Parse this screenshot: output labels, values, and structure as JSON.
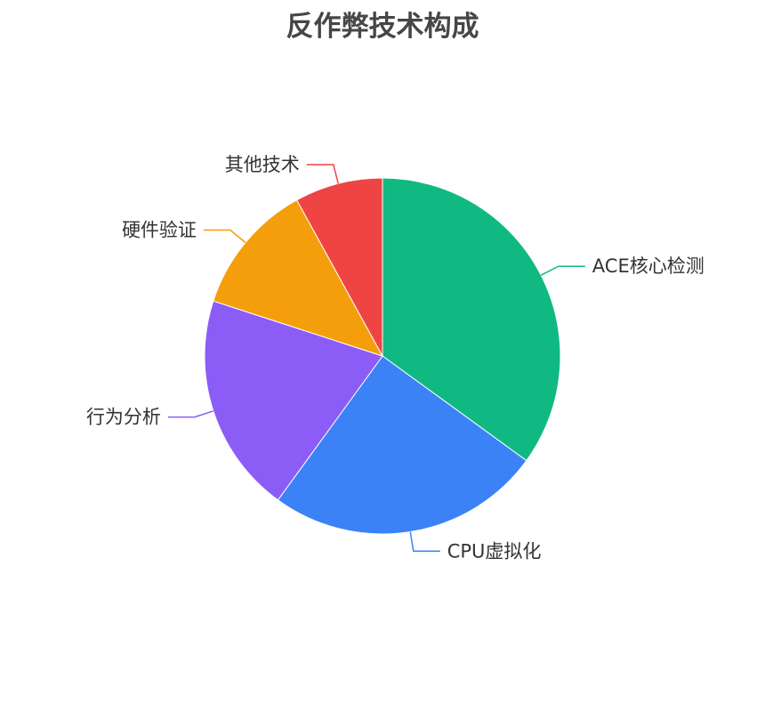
{
  "chart_data": {
    "type": "pie",
    "title": "反作弊技术构成",
    "categories": [
      "ACE核心检测",
      "CPU虚拟化",
      "行为分析",
      "硬件验证",
      "其他技术"
    ],
    "values": [
      35,
      25,
      20,
      12,
      8
    ],
    "colors": [
      "#10b981",
      "#3b82f6",
      "#8b5cf6",
      "#f59e0b",
      "#ef4444"
    ],
    "start_angle": "12 o'clock",
    "direction": "clockwise",
    "legend": "none",
    "labels": "outside with leader lines"
  }
}
